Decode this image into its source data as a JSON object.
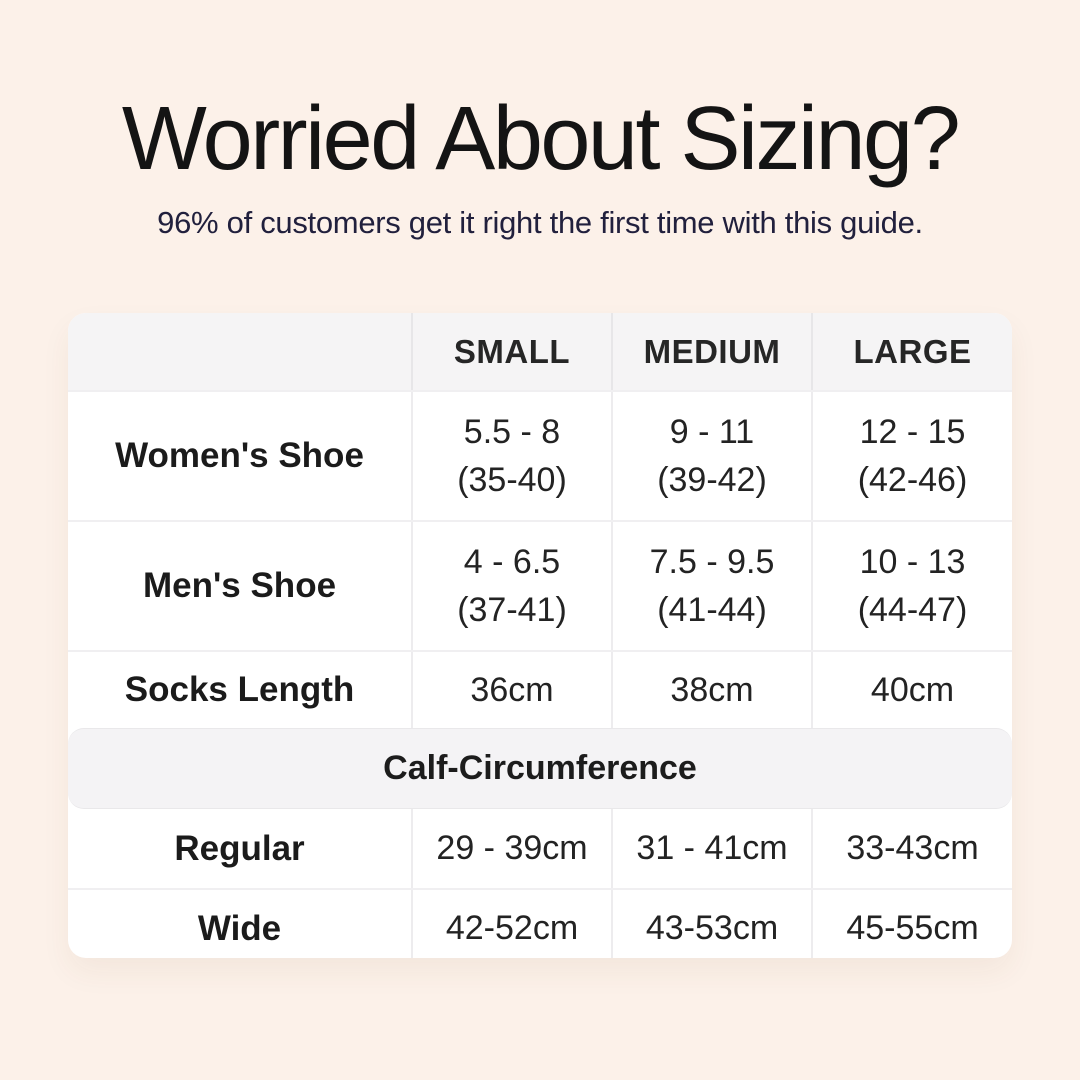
{
  "page": {
    "title": "Worried About Sizing?",
    "subtitle": "96% of customers get it right the first time with this guide."
  },
  "table": {
    "columns": [
      "SMALL",
      "MEDIUM",
      "LARGE"
    ],
    "rows": [
      {
        "label": "Women's Shoe",
        "values": [
          [
            "5.5 - 8",
            "(35-40)"
          ],
          [
            "9 - 11",
            "(39-42)"
          ],
          [
            "12 - 15",
            "(42-46)"
          ]
        ]
      },
      {
        "label": "Men's Shoe",
        "values": [
          [
            "4 - 6.5",
            "(37-41)"
          ],
          [
            "7.5 - 9.5",
            "(41-44)"
          ],
          [
            "10 - 13",
            "(44-47)"
          ]
        ]
      },
      {
        "label": "Socks Length",
        "values": [
          [
            "36cm"
          ],
          [
            "38cm"
          ],
          [
            "40cm"
          ]
        ]
      }
    ],
    "section_header": "Calf-Circumference",
    "calf_rows": [
      {
        "label": "Regular",
        "values": [
          "29 - 39cm",
          "31 - 41cm",
          "33-43cm"
        ]
      },
      {
        "label": "Wide",
        "values": [
          "42-52cm",
          "43-53cm",
          "45-55cm"
        ]
      }
    ]
  },
  "colors": {
    "background": "#fcf1e9",
    "card": "#ffffff",
    "header_row": "#f5f4f5",
    "section_band": "#f4f3f5",
    "divider": "#edecee",
    "title_text": "#141414",
    "subtitle_text": "#21203d",
    "table_text": "#1b1b1b"
  },
  "chart_data": {
    "type": "table",
    "title": "Worried About Sizing?",
    "subtitle": "96% of customers get it right the first time with this guide.",
    "columns": [
      "",
      "SMALL",
      "MEDIUM",
      "LARGE"
    ],
    "rows": [
      [
        "Women's Shoe",
        "5.5 - 8 (35-40)",
        "9 - 11 (39-42)",
        "12 - 15 (42-46)"
      ],
      [
        "Men's Shoe",
        "4 - 6.5 (37-41)",
        "7.5 - 9.5 (41-44)",
        "10 - 13 (44-47)"
      ],
      [
        "Socks Length",
        "36cm",
        "38cm",
        "40cm"
      ],
      [
        "Calf-Circumference",
        "",
        "",
        ""
      ],
      [
        "Regular",
        "29 - 39cm",
        "31 - 41cm",
        "33-43cm"
      ],
      [
        "Wide",
        "42-52cm",
        "43-53cm",
        "45-55cm"
      ]
    ]
  }
}
